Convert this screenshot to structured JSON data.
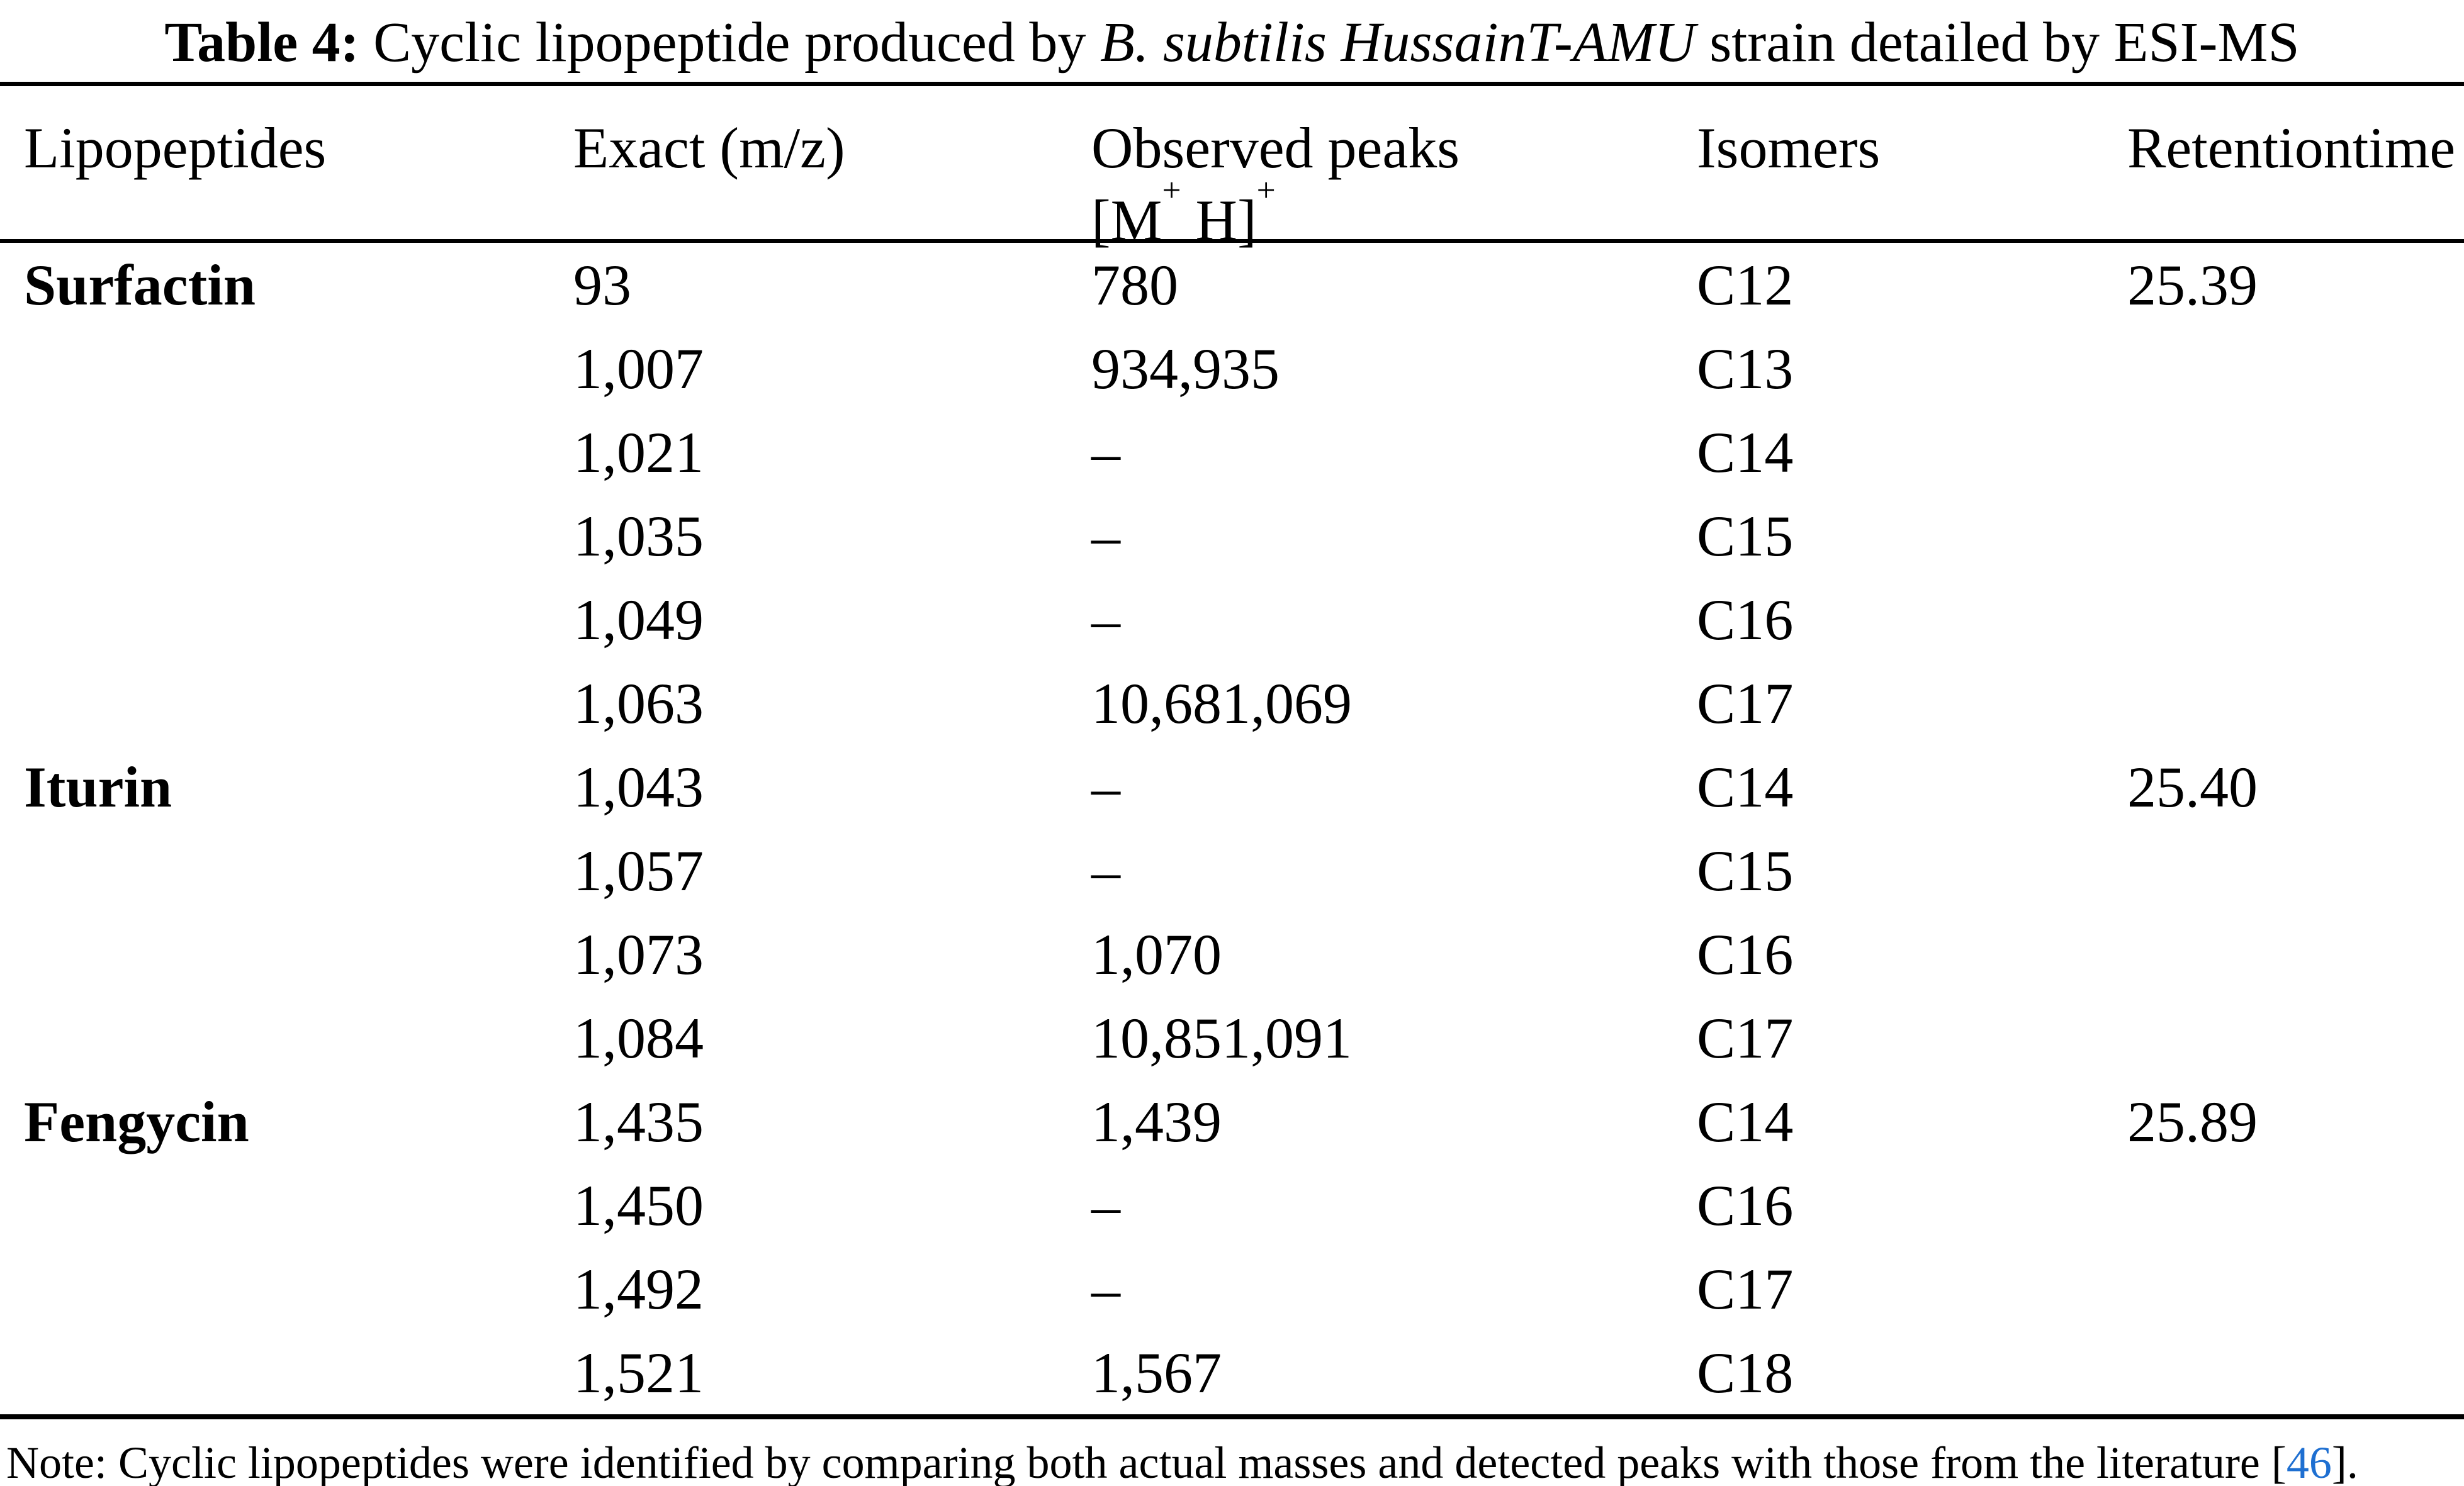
{
  "caption": {
    "label": "Table 4:",
    "pre": "  Cyclic lipopeptide produced by ",
    "species": "B. subtilis HussainT-AMU",
    "post": " strain detailed by ESI-MS"
  },
  "header": {
    "lipopeptides": "Lipopeptides",
    "exact_mz": "Exact (m/z)",
    "observed_line1": "Observed peaks",
    "observed_m": "[M",
    "observed_sup1": "+",
    "observed_h": " H]",
    "observed_sup2": "+",
    "isomers": "Isomers",
    "retention": "Retentiontime"
  },
  "rows": [
    {
      "lipopeptide": "Surfactin",
      "exact": "93",
      "observed": "780",
      "isomer": "C12",
      "retention": "25.39"
    },
    {
      "lipopeptide": "",
      "exact": "1,007",
      "observed": "934,935",
      "isomer": "C13",
      "retention": ""
    },
    {
      "lipopeptide": "",
      "exact": "1,021",
      "observed": "–",
      "isomer": "C14",
      "retention": ""
    },
    {
      "lipopeptide": "",
      "exact": "1,035",
      "observed": "–",
      "isomer": "C15",
      "retention": ""
    },
    {
      "lipopeptide": "",
      "exact": "1,049",
      "observed": "–",
      "isomer": "C16",
      "retention": ""
    },
    {
      "lipopeptide": "",
      "exact": "1,063",
      "observed": "10,681,069",
      "isomer": "C17",
      "retention": ""
    },
    {
      "lipopeptide": "Iturin",
      "exact": "1,043",
      "observed": "–",
      "isomer": "C14",
      "retention": "25.40"
    },
    {
      "lipopeptide": "",
      "exact": "1,057",
      "observed": "–",
      "isomer": "C15",
      "retention": ""
    },
    {
      "lipopeptide": "",
      "exact": "1,073",
      "observed": "1,070",
      "isomer": "C16",
      "retention": ""
    },
    {
      "lipopeptide": "",
      "exact": "1,084",
      "observed": "10,851,091",
      "isomer": "C17",
      "retention": ""
    },
    {
      "lipopeptide": "Fengycin",
      "exact": "1,435",
      "observed": "1,439",
      "isomer": "C14",
      "retention": "25.89"
    },
    {
      "lipopeptide": "",
      "exact": "1,450",
      "observed": "–",
      "isomer": "C16",
      "retention": ""
    },
    {
      "lipopeptide": "",
      "exact": "1,492",
      "observed": "–",
      "isomer": "C17",
      "retention": ""
    },
    {
      "lipopeptide": "",
      "exact": "1,521",
      "observed": "1,567",
      "isomer": "C18",
      "retention": ""
    }
  ],
  "note": {
    "pre": "Note: Cyclic lipopeptides were identified by comparing both actual masses and detected peaks with those from the literature [",
    "ref": "46",
    "post": "]."
  },
  "colors": {
    "text": "#000000",
    "background": "#ffffff",
    "reference_blue": "#1e6fd1"
  }
}
